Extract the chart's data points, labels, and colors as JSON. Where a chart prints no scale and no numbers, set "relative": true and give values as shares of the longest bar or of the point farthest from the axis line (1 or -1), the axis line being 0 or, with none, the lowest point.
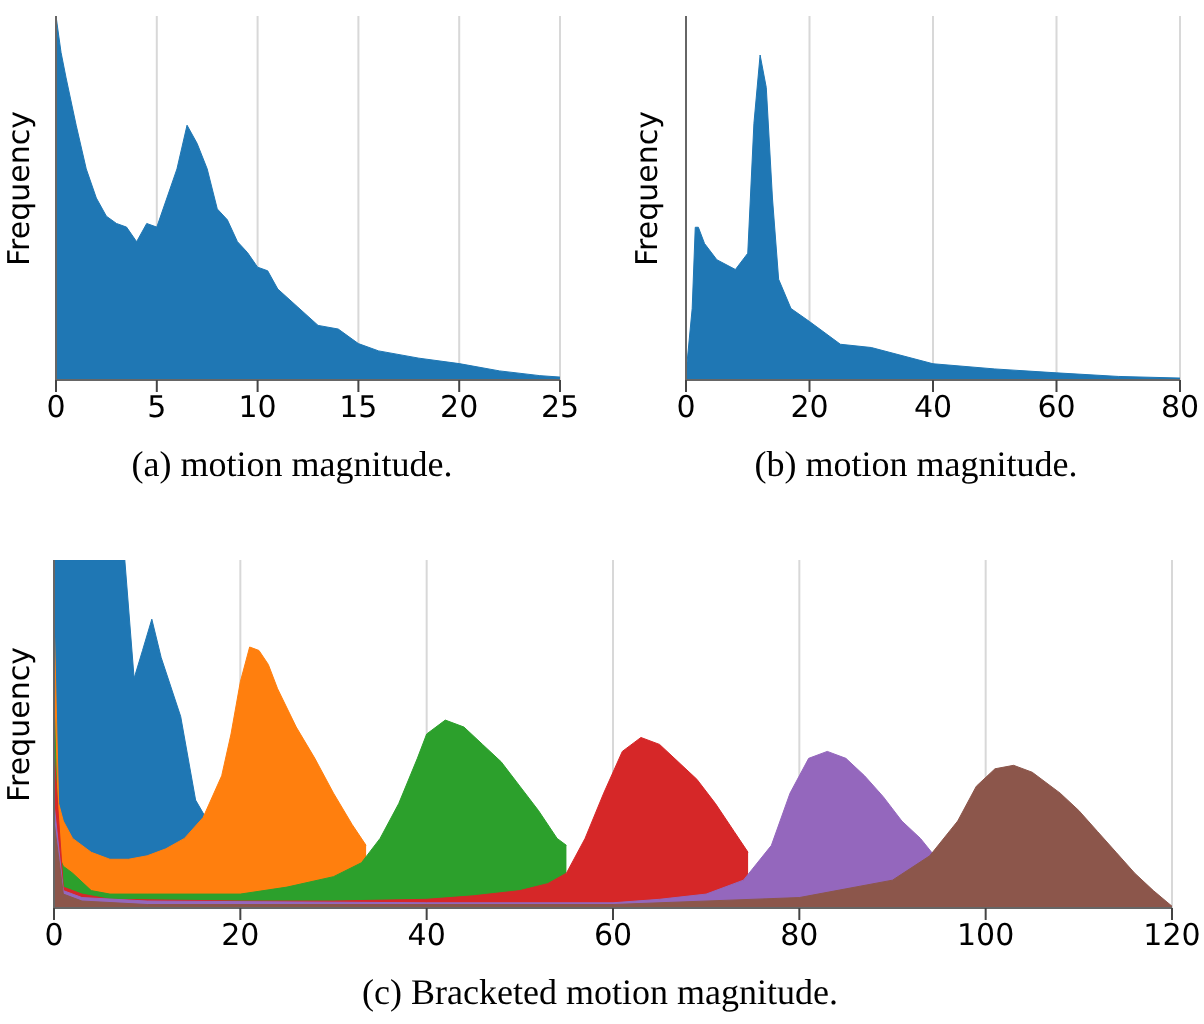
{
  "chart_data": [
    {
      "type": "area",
      "title": "(a) motion magnitude.",
      "ylabel": "Frequency",
      "relative": true,
      "grid": true,
      "tick_labels": "x",
      "xlim": [
        0,
        25
      ],
      "xticks": [
        0,
        5,
        10,
        15,
        20,
        25
      ],
      "color": "#1f77b4",
      "x": [
        0,
        0.25,
        0.5,
        1,
        1.5,
        2,
        2.5,
        3,
        3.5,
        4,
        4.5,
        5,
        5.5,
        6,
        6.5,
        7,
        7.5,
        8,
        8.5,
        9,
        9.5,
        10,
        10.5,
        11,
        12,
        13,
        14,
        15,
        16,
        18,
        20,
        22,
        24,
        25
      ],
      "values": [
        1,
        0.9,
        0.83,
        0.7,
        0.58,
        0.5,
        0.45,
        0.43,
        0.42,
        0.38,
        0.43,
        0.42,
        0.5,
        0.58,
        0.7,
        0.65,
        0.58,
        0.47,
        0.44,
        0.38,
        0.35,
        0.31,
        0.3,
        0.25,
        0.2,
        0.15,
        0.14,
        0.1,
        0.08,
        0.06,
        0.045,
        0.025,
        0.012,
        0.008
      ]
    },
    {
      "type": "area",
      "title": "(b) motion magnitude.",
      "ylabel": "Frequency",
      "relative": true,
      "grid": true,
      "tick_labels": "x",
      "xlim": [
        0,
        80
      ],
      "xticks": [
        0,
        20,
        40,
        60,
        80
      ],
      "color": "#1f77b4",
      "x": [
        0,
        1,
        1.5,
        2,
        3,
        5,
        8,
        10,
        11,
        12,
        13,
        14,
        15,
        17,
        20,
        25,
        30,
        40,
        50,
        60,
        70,
        80
      ],
      "values": [
        0.02,
        0.22,
        0.47,
        0.47,
        0.42,
        0.37,
        0.34,
        0.39,
        0.79,
        1,
        0.9,
        0.56,
        0.31,
        0.22,
        0.18,
        0.11,
        0.1,
        0.05,
        0.034,
        0.022,
        0.011,
        0.006
      ]
    },
    {
      "type": "area",
      "title": "(c) Bracketed motion magnitude.",
      "ylabel": "Frequency",
      "relative": true,
      "grid": true,
      "tick_labels": "x",
      "xlim": [
        0,
        120
      ],
      "xticks": [
        0,
        20,
        40,
        60,
        80,
        100,
        120
      ],
      "series": [
        {
          "color": "#1f77b4",
          "x": [
            0,
            7.6,
            8.6,
            9.5,
            10.5,
            11.5,
            13.6,
            15.2,
            16.5
          ],
          "values": [
            1,
            1,
            0.66,
            0.74,
            0.83,
            0.72,
            0.55,
            0.31,
            0.25
          ]
        },
        {
          "color": "#ff7f0e",
          "x": [
            0,
            0.5,
            1,
            2,
            4,
            6,
            8,
            10,
            12,
            14,
            16,
            18,
            19,
            20,
            21,
            22,
            23,
            24,
            26,
            28,
            30,
            32,
            33.5
          ],
          "values": [
            0.84,
            0.3,
            0.25,
            0.2,
            0.16,
            0.14,
            0.14,
            0.15,
            0.17,
            0.2,
            0.26,
            0.38,
            0.5,
            0.65,
            0.75,
            0.74,
            0.7,
            0.63,
            0.52,
            0.43,
            0.33,
            0.24,
            0.18
          ]
        },
        {
          "color": "#2ca02c",
          "x": [
            0,
            0.5,
            1,
            2,
            4,
            6,
            10,
            15,
            20,
            25,
            30,
            33,
            35,
            37,
            39,
            40,
            42,
            44,
            46,
            48,
            50,
            52,
            54,
            55
          ],
          "values": [
            0.6,
            0.15,
            0.12,
            0.1,
            0.05,
            0.04,
            0.04,
            0.04,
            0.04,
            0.06,
            0.09,
            0.13,
            0.2,
            0.3,
            0.43,
            0.5,
            0.54,
            0.52,
            0.47,
            0.42,
            0.35,
            0.28,
            0.2,
            0.18
          ]
        },
        {
          "color": "#d62728",
          "x": [
            0,
            1,
            3,
            6,
            20,
            30,
            40,
            45,
            50,
            53,
            55,
            57,
            59,
            61,
            63,
            65,
            67,
            69,
            71,
            73,
            74.5
          ],
          "values": [
            0.45,
            0.06,
            0.04,
            0.025,
            0.02,
            0.02,
            0.025,
            0.035,
            0.05,
            0.07,
            0.1,
            0.2,
            0.33,
            0.45,
            0.49,
            0.47,
            0.42,
            0.37,
            0.3,
            0.22,
            0.16
          ]
        },
        {
          "color": "#9467bd",
          "x": [
            0,
            1,
            3,
            10,
            40,
            60,
            65,
            70,
            74,
            77,
            79,
            81,
            83,
            85,
            87,
            89,
            91,
            93,
            94.5
          ],
          "values": [
            0.3,
            0.05,
            0.03,
            0.02,
            0.015,
            0.015,
            0.025,
            0.04,
            0.08,
            0.18,
            0.33,
            0.43,
            0.45,
            0.43,
            0.38,
            0.32,
            0.25,
            0.2,
            0.15
          ]
        },
        {
          "color": "#8c564b",
          "x": [
            0,
            1,
            3,
            10,
            60,
            80,
            90,
            94,
            97,
            99,
            101,
            103,
            105,
            108,
            110,
            112,
            114,
            116,
            118,
            120
          ],
          "values": [
            0.25,
            0.04,
            0.02,
            0.01,
            0.01,
            0.03,
            0.08,
            0.15,
            0.25,
            0.35,
            0.4,
            0.41,
            0.39,
            0.33,
            0.28,
            0.22,
            0.16,
            0.1,
            0.05,
            0.005
          ]
        }
      ]
    }
  ]
}
